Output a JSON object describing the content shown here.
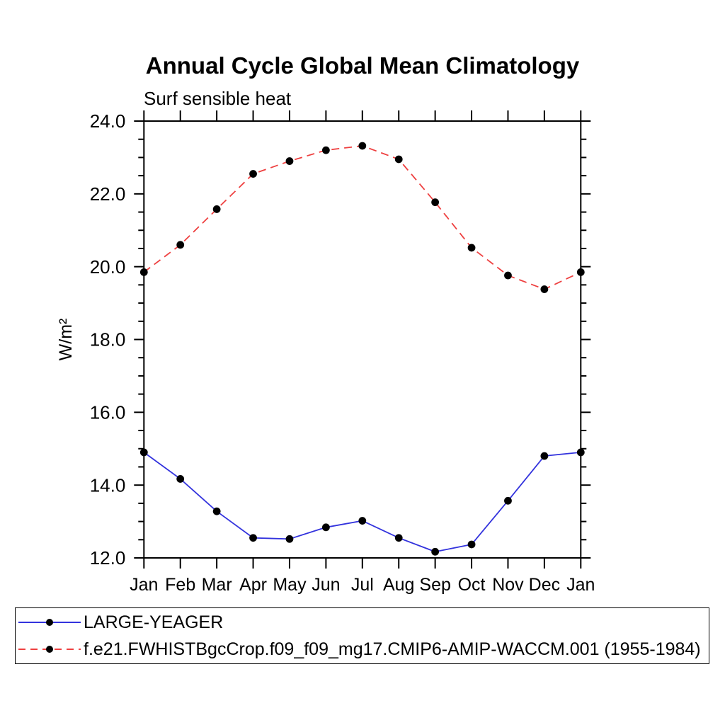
{
  "page": {
    "background": "#ffffff"
  },
  "chart_data": {
    "type": "line",
    "title": "Annual Cycle Global Mean Climatology",
    "subtitle": "Surf sensible heat",
    "ylabel": "W/m²",
    "xlabel": "",
    "categories": [
      "Jan",
      "Feb",
      "Mar",
      "Apr",
      "May",
      "Jun",
      "Jul",
      "Aug",
      "Sep",
      "Oct",
      "Nov",
      "Dec",
      "Jan"
    ],
    "ylim": [
      12.0,
      24.0
    ],
    "ytick_major_interval": 2.0,
    "ytick_minor_interval": 0.5,
    "ytick_labels": [
      "12.0",
      "14.0",
      "16.0",
      "18.0",
      "20.0",
      "22.0",
      "24.0"
    ],
    "grid": false,
    "legend_position": "bottom-left",
    "axis_color": "#000000",
    "marker_color": "#000000",
    "series": [
      {
        "name": "LARGE-YEAGER",
        "color": "#3333dd",
        "line_style": "solid",
        "marker": "filled-circle",
        "values": [
          14.9,
          14.17,
          13.28,
          12.55,
          12.52,
          12.84,
          13.02,
          12.55,
          12.17,
          12.37,
          13.57,
          14.8,
          14.9
        ]
      },
      {
        "name": "f.e21.FWHISTBgcCrop.f09_f09_mg17.CMIP6-AMIP-WACCM.001 (1955-1984)",
        "color": "#ee4040",
        "line_style": "dashed",
        "marker": "filled-circle",
        "values": [
          19.85,
          20.6,
          21.58,
          22.55,
          22.9,
          23.2,
          23.32,
          22.95,
          21.77,
          20.52,
          19.76,
          19.38,
          19.85
        ]
      }
    ]
  }
}
